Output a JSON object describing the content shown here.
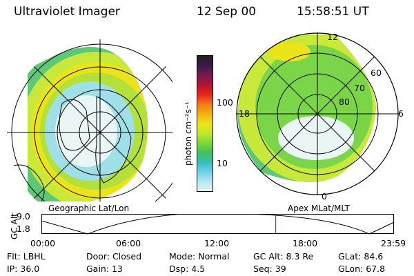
{
  "header": {
    "title": "Ultraviolet Imager",
    "date": "12 Sep 00",
    "time": "15:58:51 UT"
  },
  "left_panel": {
    "label": "Geographic Lat/Lon"
  },
  "right_panel": {
    "label": "Apex MLat/MLT",
    "hour_labels": {
      "top": "12",
      "bottom": "0",
      "left": "18",
      "right": "6"
    },
    "lat_labels": [
      "60",
      "70",
      "80"
    ]
  },
  "colorbar": {
    "unit": "photon cm⁻²s⁻¹",
    "ticks": [
      "100",
      "10"
    ],
    "colors": [
      "#202020",
      "#3a1a4a",
      "#7a1a50",
      "#b81230",
      "#e8241c",
      "#f07c16",
      "#f2b20e",
      "#ece41a",
      "#c2e82a",
      "#80d838",
      "#3ec25e",
      "#36bcbc",
      "#6cd2e8",
      "#b4e6f0",
      "#e6f4f6"
    ]
  },
  "timeline": {
    "axis_label": "GC Alt",
    "y_ticks": [
      "9.0",
      "1.8"
    ],
    "x_ticks": [
      "00:00",
      "06:00",
      "12:00",
      "18:00",
      "23:59"
    ],
    "current_hours": 15.98,
    "marker_color": "#cc2222"
  },
  "info_rows": [
    [
      {
        "label": "Flt:",
        "value": "LBHL"
      },
      {
        "label": "Door:",
        "value": "Closed"
      },
      {
        "label": "Mode:",
        "value": "Normal"
      },
      {
        "label": "GC Alt:",
        "value": "8.3 Re"
      },
      {
        "label": "GLat:",
        "value": "84.6"
      }
    ],
    [
      {
        "label": "IP:",
        "value": "36.0"
      },
      {
        "label": "Gain:",
        "value": "13"
      },
      {
        "label": "Dsp:",
        "value": "4.5"
      },
      {
        "label": "Seq:",
        "value": "39"
      },
      {
        "label": "GLon:",
        "value": "67.8"
      }
    ]
  ]
}
